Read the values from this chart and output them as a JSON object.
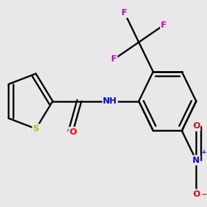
{
  "background_color": "#e8e8e8",
  "atom_colors": {
    "S": "#b8b800",
    "O": "#ff0000",
    "N": "#0000ff",
    "F": "#cc00cc",
    "C": "#000000",
    "H": "#404040"
  },
  "bond_color": "#000000",
  "bond_width": 1.8,
  "figsize": [
    3.0,
    3.0
  ],
  "dpi": 100
}
